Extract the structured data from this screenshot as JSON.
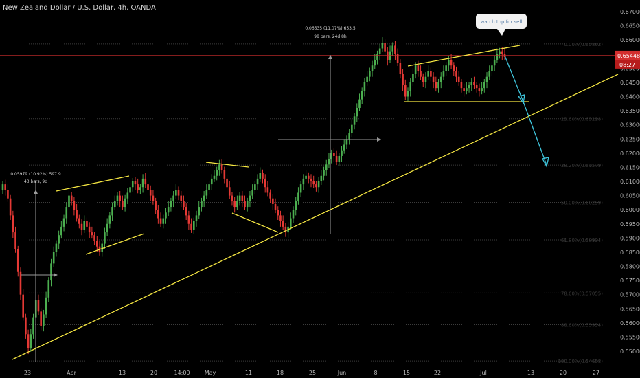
{
  "chart_data": {
    "type": "candlestick",
    "title": "New Zealand Dollar / U.S. Dollar, 4h, OANDA",
    "y_ticks": [
      "0.67000",
      "0.66500",
      "0.66000",
      "0.65500",
      "0.65000",
      "0.64500",
      "0.64000",
      "0.63500",
      "0.63000",
      "0.62500",
      "0.62000",
      "0.61500",
      "0.61000",
      "0.60500",
      "0.60000",
      "0.59500",
      "0.59000",
      "0.58500",
      "0.58000",
      "0.57500",
      "0.57000",
      "0.56500",
      "0.56000",
      "0.55500",
      "0.55000"
    ],
    "ylim": [
      0.5485,
      0.6725
    ],
    "x_ticks": [
      "23",
      "Apr",
      "13",
      "20",
      "14:00",
      "May",
      "11",
      "18",
      "25",
      "Jun",
      "8",
      "15",
      "22",
      "Jul",
      "13",
      "20",
      "27"
    ],
    "current_price": "0.65448",
    "countdown": "08:27",
    "fib_levels": [
      {
        "label": "0.00%(0.65862)",
        "price": 0.65862
      },
      {
        "label": "23.60%(0.63218)",
        "price": 0.63218
      },
      {
        "label": "38.20%(0.61579)",
        "price": 0.61579
      },
      {
        "label": "50.00%(0.60259)",
        "price": 0.60259
      },
      {
        "label": "61.80%(0.58934)",
        "price": 0.58934
      },
      {
        "label": "78.60%(0.57055)",
        "price": 0.57055
      },
      {
        "label": "88.60%(0.55934)",
        "price": 0.55934
      },
      {
        "label": "100.00%(0.54658)",
        "price": 0.54658
      }
    ],
    "measure_1": {
      "line1": "0.05979 (10.92%) 597.9",
      "line2": "43 bars, 9d"
    },
    "measure_2": {
      "line1": "0.06535 (11.07%) 653.5",
      "line2": "98 bars, 24d 8h"
    },
    "callout": "watch top for sell",
    "series": [
      {
        "name": "close",
        "values": [
          0.609,
          0.607,
          0.604,
          0.598,
          0.592,
          0.586,
          0.578,
          0.57,
          0.562,
          0.556,
          0.551,
          0.556,
          0.562,
          0.568,
          0.564,
          0.559,
          0.563,
          0.569,
          0.575,
          0.581,
          0.585,
          0.588,
          0.591,
          0.594,
          0.597,
          0.601,
          0.605,
          0.603,
          0.6,
          0.597,
          0.595,
          0.593,
          0.596,
          0.594,
          0.592,
          0.591,
          0.589,
          0.587,
          0.585,
          0.588,
          0.592,
          0.595,
          0.598,
          0.601,
          0.603,
          0.605,
          0.603,
          0.601,
          0.604,
          0.606,
          0.608,
          0.61,
          0.609,
          0.607,
          0.608,
          0.611,
          0.609,
          0.607,
          0.605,
          0.603,
          0.6,
          0.597,
          0.595,
          0.597,
          0.599,
          0.601,
          0.603,
          0.605,
          0.607,
          0.605,
          0.603,
          0.601,
          0.598,
          0.595,
          0.593,
          0.596,
          0.598,
          0.601,
          0.603,
          0.605,
          0.607,
          0.609,
          0.611,
          0.612,
          0.614,
          0.616,
          0.614,
          0.611,
          0.608,
          0.605,
          0.603,
          0.601,
          0.603,
          0.605,
          0.603,
          0.601,
          0.603,
          0.605,
          0.607,
          0.609,
          0.611,
          0.613,
          0.611,
          0.608,
          0.606,
          0.604,
          0.602,
          0.6,
          0.598,
          0.596,
          0.594,
          0.592,
          0.594,
          0.597,
          0.6,
          0.603,
          0.606,
          0.609,
          0.611,
          0.612,
          0.611,
          0.61,
          0.609,
          0.608,
          0.61,
          0.612,
          0.614,
          0.616,
          0.618,
          0.62,
          0.619,
          0.617,
          0.619,
          0.621,
          0.623,
          0.625,
          0.627,
          0.63,
          0.633,
          0.636,
          0.639,
          0.642,
          0.645,
          0.647,
          0.649,
          0.651,
          0.653,
          0.655,
          0.657,
          0.659,
          0.656,
          0.653,
          0.656,
          0.658,
          0.655,
          0.652,
          0.648,
          0.644,
          0.64,
          0.642,
          0.645,
          0.648,
          0.651,
          0.649,
          0.647,
          0.645,
          0.647,
          0.649,
          0.647,
          0.645,
          0.643,
          0.645,
          0.647,
          0.649,
          0.651,
          0.653,
          0.651,
          0.649,
          0.647,
          0.645,
          0.643,
          0.642,
          0.643,
          0.644,
          0.645,
          0.644,
          0.643,
          0.642,
          0.643,
          0.645,
          0.647,
          0.649,
          0.651,
          0.653,
          0.655,
          0.656,
          0.655,
          0.654
        ]
      }
    ]
  },
  "annotation_colors": {
    "pattern_lines": "#f5e642",
    "trend_line": "#f5e642",
    "projection_arrow": "#3fc5dc",
    "current_price_line": "#d32f2f",
    "up_candle": "#4caf50",
    "down_candle": "#e53935",
    "background": "#000000"
  }
}
